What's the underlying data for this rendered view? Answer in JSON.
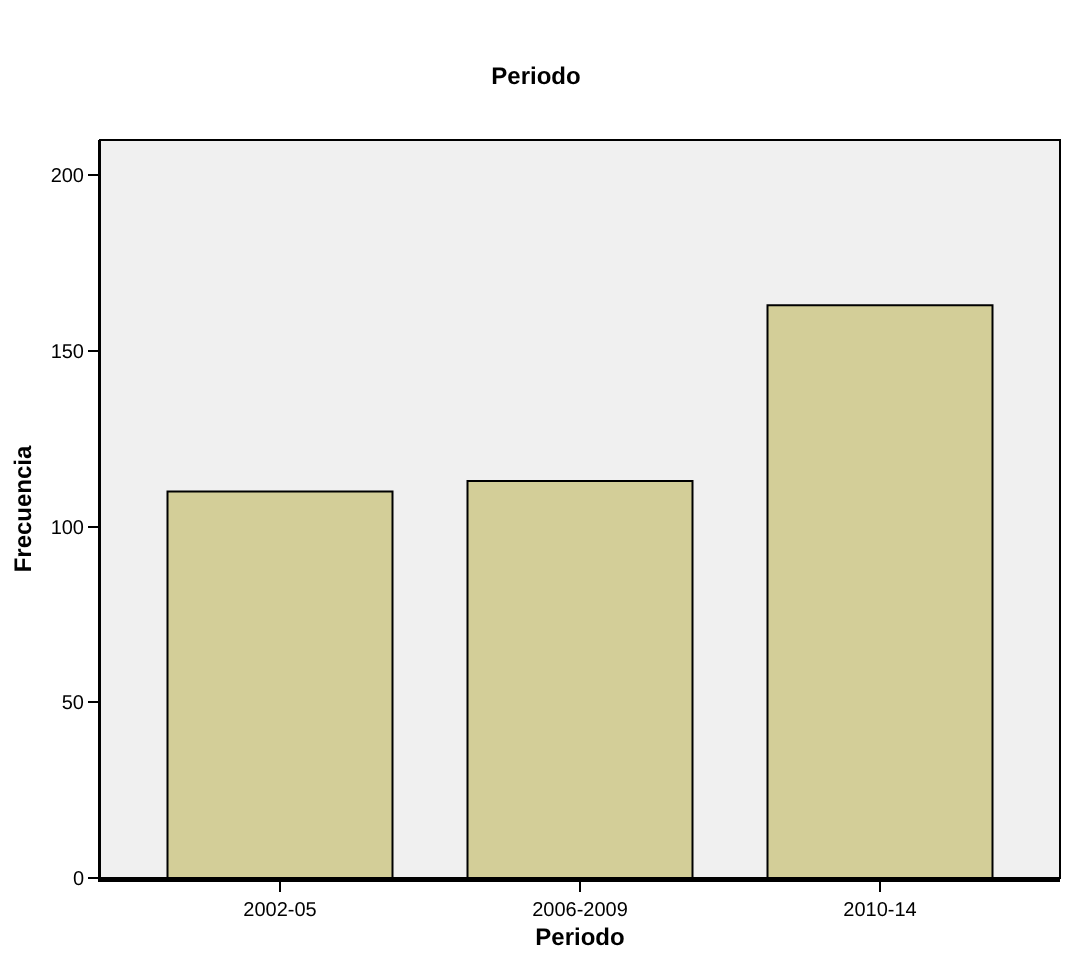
{
  "chart_data": {
    "type": "bar",
    "title": "Periodo",
    "xlabel": "Periodo",
    "ylabel": "Frecuencia",
    "categories": [
      "2002-05",
      "2006-2009",
      "2010-14"
    ],
    "values": [
      110,
      113,
      163
    ],
    "color": "#d3ce98",
    "ylim": [
      0,
      210
    ],
    "yticks": [
      0,
      50,
      100,
      150,
      200
    ],
    "grid": false,
    "legend": false
  }
}
